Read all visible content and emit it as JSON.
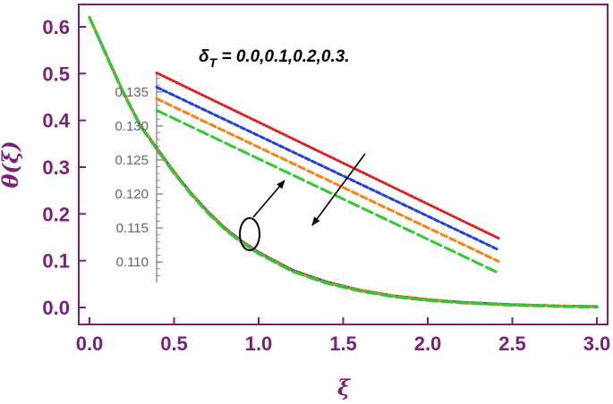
{
  "colors": {
    "axis": "#7b1f7b",
    "series": [
      "#e31a1c",
      "#1f3fe0",
      "#ff7f0e",
      "#2ccc2c"
    ],
    "inset_axis": "#777777",
    "annotation": "#000000"
  },
  "chart_data": [
    {
      "type": "line",
      "xlabel": "ξ",
      "ylabel": "θ(ξ)",
      "xlim": [
        0,
        3
      ],
      "ylim": [
        -0.02,
        0.65
      ],
      "xticks": [
        "0.0",
        "0.5",
        "1.0",
        "1.5",
        "2.0",
        "2.5",
        "3.0"
      ],
      "yticks": [
        "0.0",
        "0.1",
        "0.2",
        "0.3",
        "0.4",
        "0.5",
        "0.6"
      ],
      "x": [
        0,
        0.1,
        0.2,
        0.3,
        0.4,
        0.5,
        0.6,
        0.7,
        0.8,
        0.9,
        1.0,
        1.2,
        1.4,
        1.6,
        1.8,
        2.0,
        2.2,
        2.5,
        2.8,
        3.0
      ],
      "series": [
        {
          "values": [
            0.62,
            0.54,
            0.46,
            0.39,
            0.34,
            0.29,
            0.245,
            0.205,
            0.17,
            0.142,
            0.118,
            0.08,
            0.055,
            0.037,
            0.025,
            0.017,
            0.011,
            0.006,
            0.003,
            0.002
          ]
        },
        {
          "values": [
            0.62,
            0.54,
            0.46,
            0.39,
            0.339,
            0.289,
            0.244,
            0.204,
            0.169,
            0.141,
            0.117,
            0.079,
            0.054,
            0.036,
            0.024,
            0.016,
            0.011,
            0.006,
            0.003,
            0.002
          ]
        },
        {
          "values": [
            0.62,
            0.539,
            0.459,
            0.389,
            0.338,
            0.288,
            0.243,
            0.203,
            0.168,
            0.14,
            0.116,
            0.078,
            0.053,
            0.036,
            0.024,
            0.016,
            0.01,
            0.005,
            0.003,
            0.001
          ]
        },
        {
          "values": [
            0.62,
            0.538,
            0.458,
            0.388,
            0.337,
            0.287,
            0.242,
            0.202,
            0.167,
            0.139,
            0.115,
            0.077,
            0.052,
            0.035,
            0.023,
            0.015,
            0.01,
            0.005,
            0.002,
            0.001
          ]
        }
      ],
      "annotation": "δ",
      "annotation_subscript": "T",
      "annotation_values": " = 0.0,0.1,0.2,0.3."
    },
    {
      "type": "line",
      "inset": true,
      "ylim": [
        0.107,
        0.138
      ],
      "yticks": [
        "0.110",
        "0.115",
        "0.120",
        "0.125",
        "0.130",
        "0.135"
      ],
      "x": [
        0,
        1
      ],
      "series": [
        {
          "values": [
            0.1378,
            0.1135
          ]
        },
        {
          "values": [
            0.1357,
            0.1118
          ]
        },
        {
          "values": [
            0.134,
            0.1101
          ]
        },
        {
          "values": [
            0.1323,
            0.1084
          ]
        }
      ]
    }
  ]
}
